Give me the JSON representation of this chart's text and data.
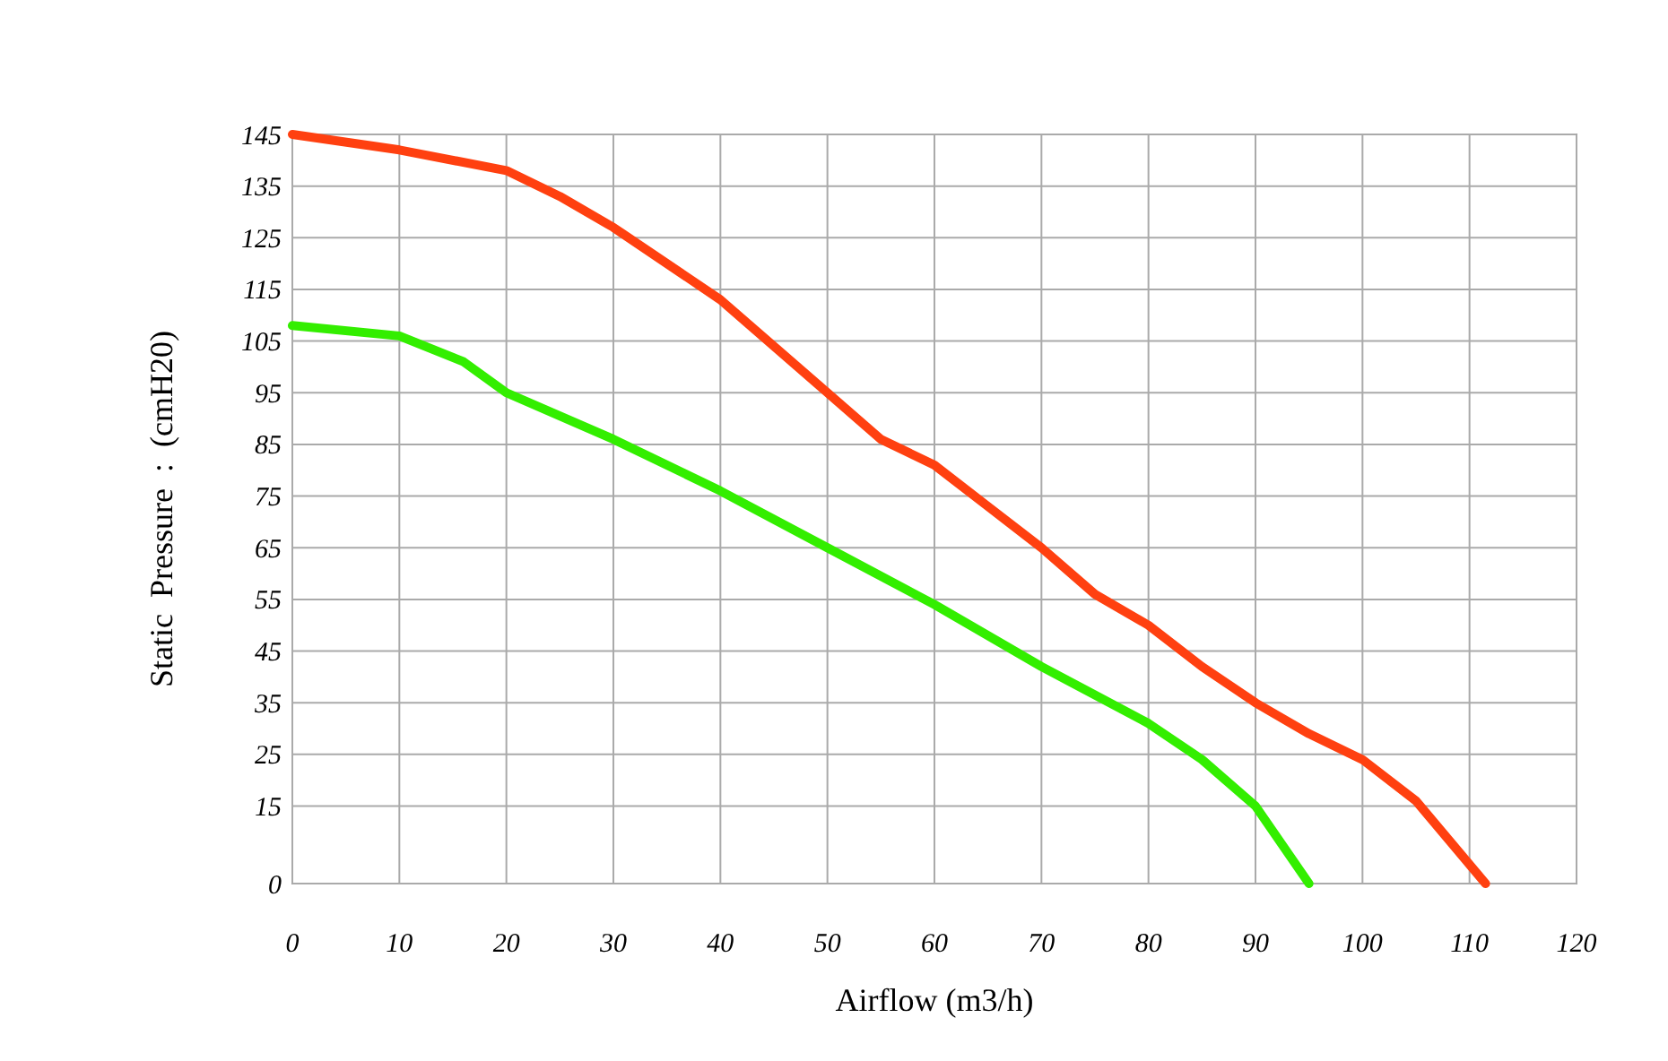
{
  "chart_data": {
    "type": "line",
    "xlabel": "Airflow (m3/h)",
    "ylabel": "Static  Pressure  :  (cmH20)",
    "xlim": [
      0,
      120
    ],
    "xticks": [
      0,
      10,
      20,
      30,
      40,
      50,
      60,
      70,
      80,
      90,
      100,
      110,
      120
    ],
    "ylim": [
      0,
      145
    ],
    "yticks": [
      0,
      15,
      25,
      35,
      45,
      55,
      65,
      75,
      85,
      95,
      105,
      115,
      125,
      135,
      145
    ],
    "grid": true,
    "line_style": "solid",
    "marker": "none",
    "series": [
      {
        "color": "#ff4010",
        "x": [
          0,
          10,
          20,
          25,
          30,
          40,
          50,
          55,
          60,
          65,
          70,
          75,
          80,
          85,
          90,
          95,
          100,
          105,
          111.5
        ],
        "values": [
          145,
          142,
          138,
          133,
          127,
          113,
          95,
          86,
          81,
          73,
          65,
          56,
          50,
          42,
          35,
          29,
          24,
          16,
          0
        ]
      },
      {
        "color": "#33ee00",
        "x": [
          0,
          10,
          16,
          20,
          30,
          40,
          50,
          60,
          70,
          80,
          85,
          90,
          95
        ],
        "values": [
          108,
          106,
          101,
          95,
          86,
          76,
          65,
          54,
          42,
          31,
          24,
          15,
          0
        ]
      }
    ]
  }
}
